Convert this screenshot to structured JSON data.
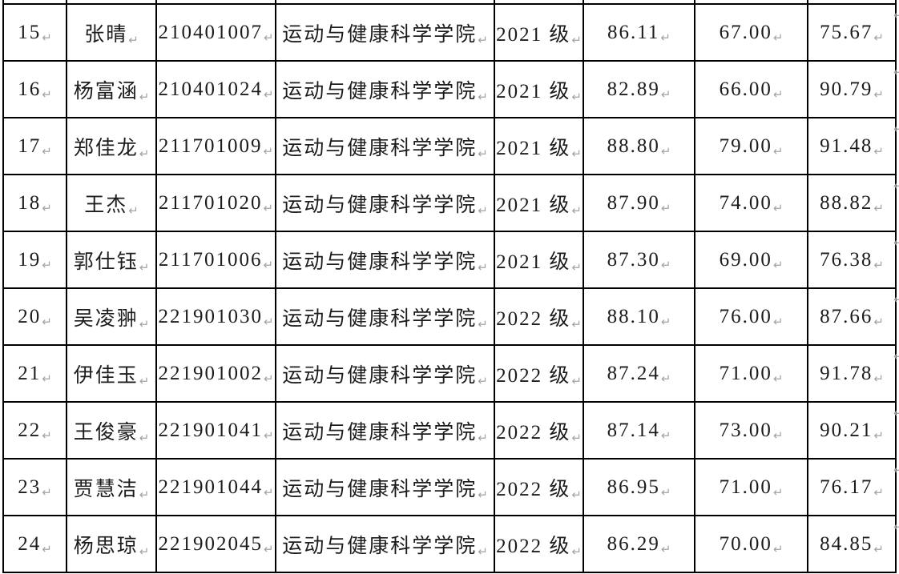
{
  "page": {
    "background_color": "#ffffff",
    "border_color": "#000000",
    "text_color": "#1c1c1c",
    "mark_color": "#a3a3a3",
    "paragraph_mark": "↵"
  },
  "table": {
    "columns": [
      {
        "key": "index",
        "cell_name": "cell-row-number"
      },
      {
        "key": "name",
        "cell_name": "cell-student-name"
      },
      {
        "key": "student_id",
        "cell_name": "cell-student-id"
      },
      {
        "key": "college",
        "cell_name": "cell-college"
      },
      {
        "key": "grade",
        "cell_name": "cell-grade"
      },
      {
        "key": "score_1",
        "cell_name": "cell-score-1"
      },
      {
        "key": "score_2",
        "cell_name": "cell-score-2"
      },
      {
        "key": "score_3",
        "cell_name": "cell-score-3"
      }
    ],
    "rows": [
      {
        "index": "15",
        "name": "张晴",
        "student_id": "210401007",
        "college": "运动与健康科学学院",
        "grade": "2021 级",
        "score_1": "86.11",
        "score_2": "67.00",
        "score_3": "75.67"
      },
      {
        "index": "16",
        "name": "杨富涵",
        "student_id": "210401024",
        "college": "运动与健康科学学院",
        "grade": "2021 级",
        "score_1": "82.89",
        "score_2": "66.00",
        "score_3": "90.79"
      },
      {
        "index": "17",
        "name": "郑佳龙",
        "student_id": "211701009",
        "college": "运动与健康科学学院",
        "grade": "2021 级",
        "score_1": "88.80",
        "score_2": "79.00",
        "score_3": "91.48"
      },
      {
        "index": "18",
        "name": "王杰",
        "student_id": "211701020",
        "college": "运动与健康科学学院",
        "grade": "2021 级",
        "score_1": "87.90",
        "score_2": "74.00",
        "score_3": "88.82"
      },
      {
        "index": "19",
        "name": "郭仕钰",
        "student_id": "211701006",
        "college": "运动与健康科学学院",
        "grade": "2021 级",
        "score_1": "87.30",
        "score_2": "69.00",
        "score_3": "76.38"
      },
      {
        "index": "20",
        "name": "吴凌翀",
        "student_id": "221901030",
        "college": "运动与健康科学学院",
        "grade": "2022 级",
        "score_1": "88.10",
        "score_2": "76.00",
        "score_3": "87.66"
      },
      {
        "index": "21",
        "name": "伊佳玉",
        "student_id": "221901002",
        "college": "运动与健康科学学院",
        "grade": "2022 级",
        "score_1": "87.24",
        "score_2": "71.00",
        "score_3": "91.78"
      },
      {
        "index": "22",
        "name": "王俊豪",
        "student_id": "221901041",
        "college": "运动与健康科学学院",
        "grade": "2022 级",
        "score_1": "87.14",
        "score_2": "73.00",
        "score_3": "90.21"
      },
      {
        "index": "23",
        "name": "贾慧洁",
        "student_id": "221901044",
        "college": "运动与健康科学学院",
        "grade": "2022 级",
        "score_1": "86.95",
        "score_2": "71.00",
        "score_3": "76.17"
      },
      {
        "index": "24",
        "name": "杨思琼",
        "student_id": "221902045",
        "college": "运动与健康科学学院",
        "grade": "2022 级",
        "score_1": "86.29",
        "score_2": "70.00",
        "score_3": "84.85"
      }
    ]
  }
}
